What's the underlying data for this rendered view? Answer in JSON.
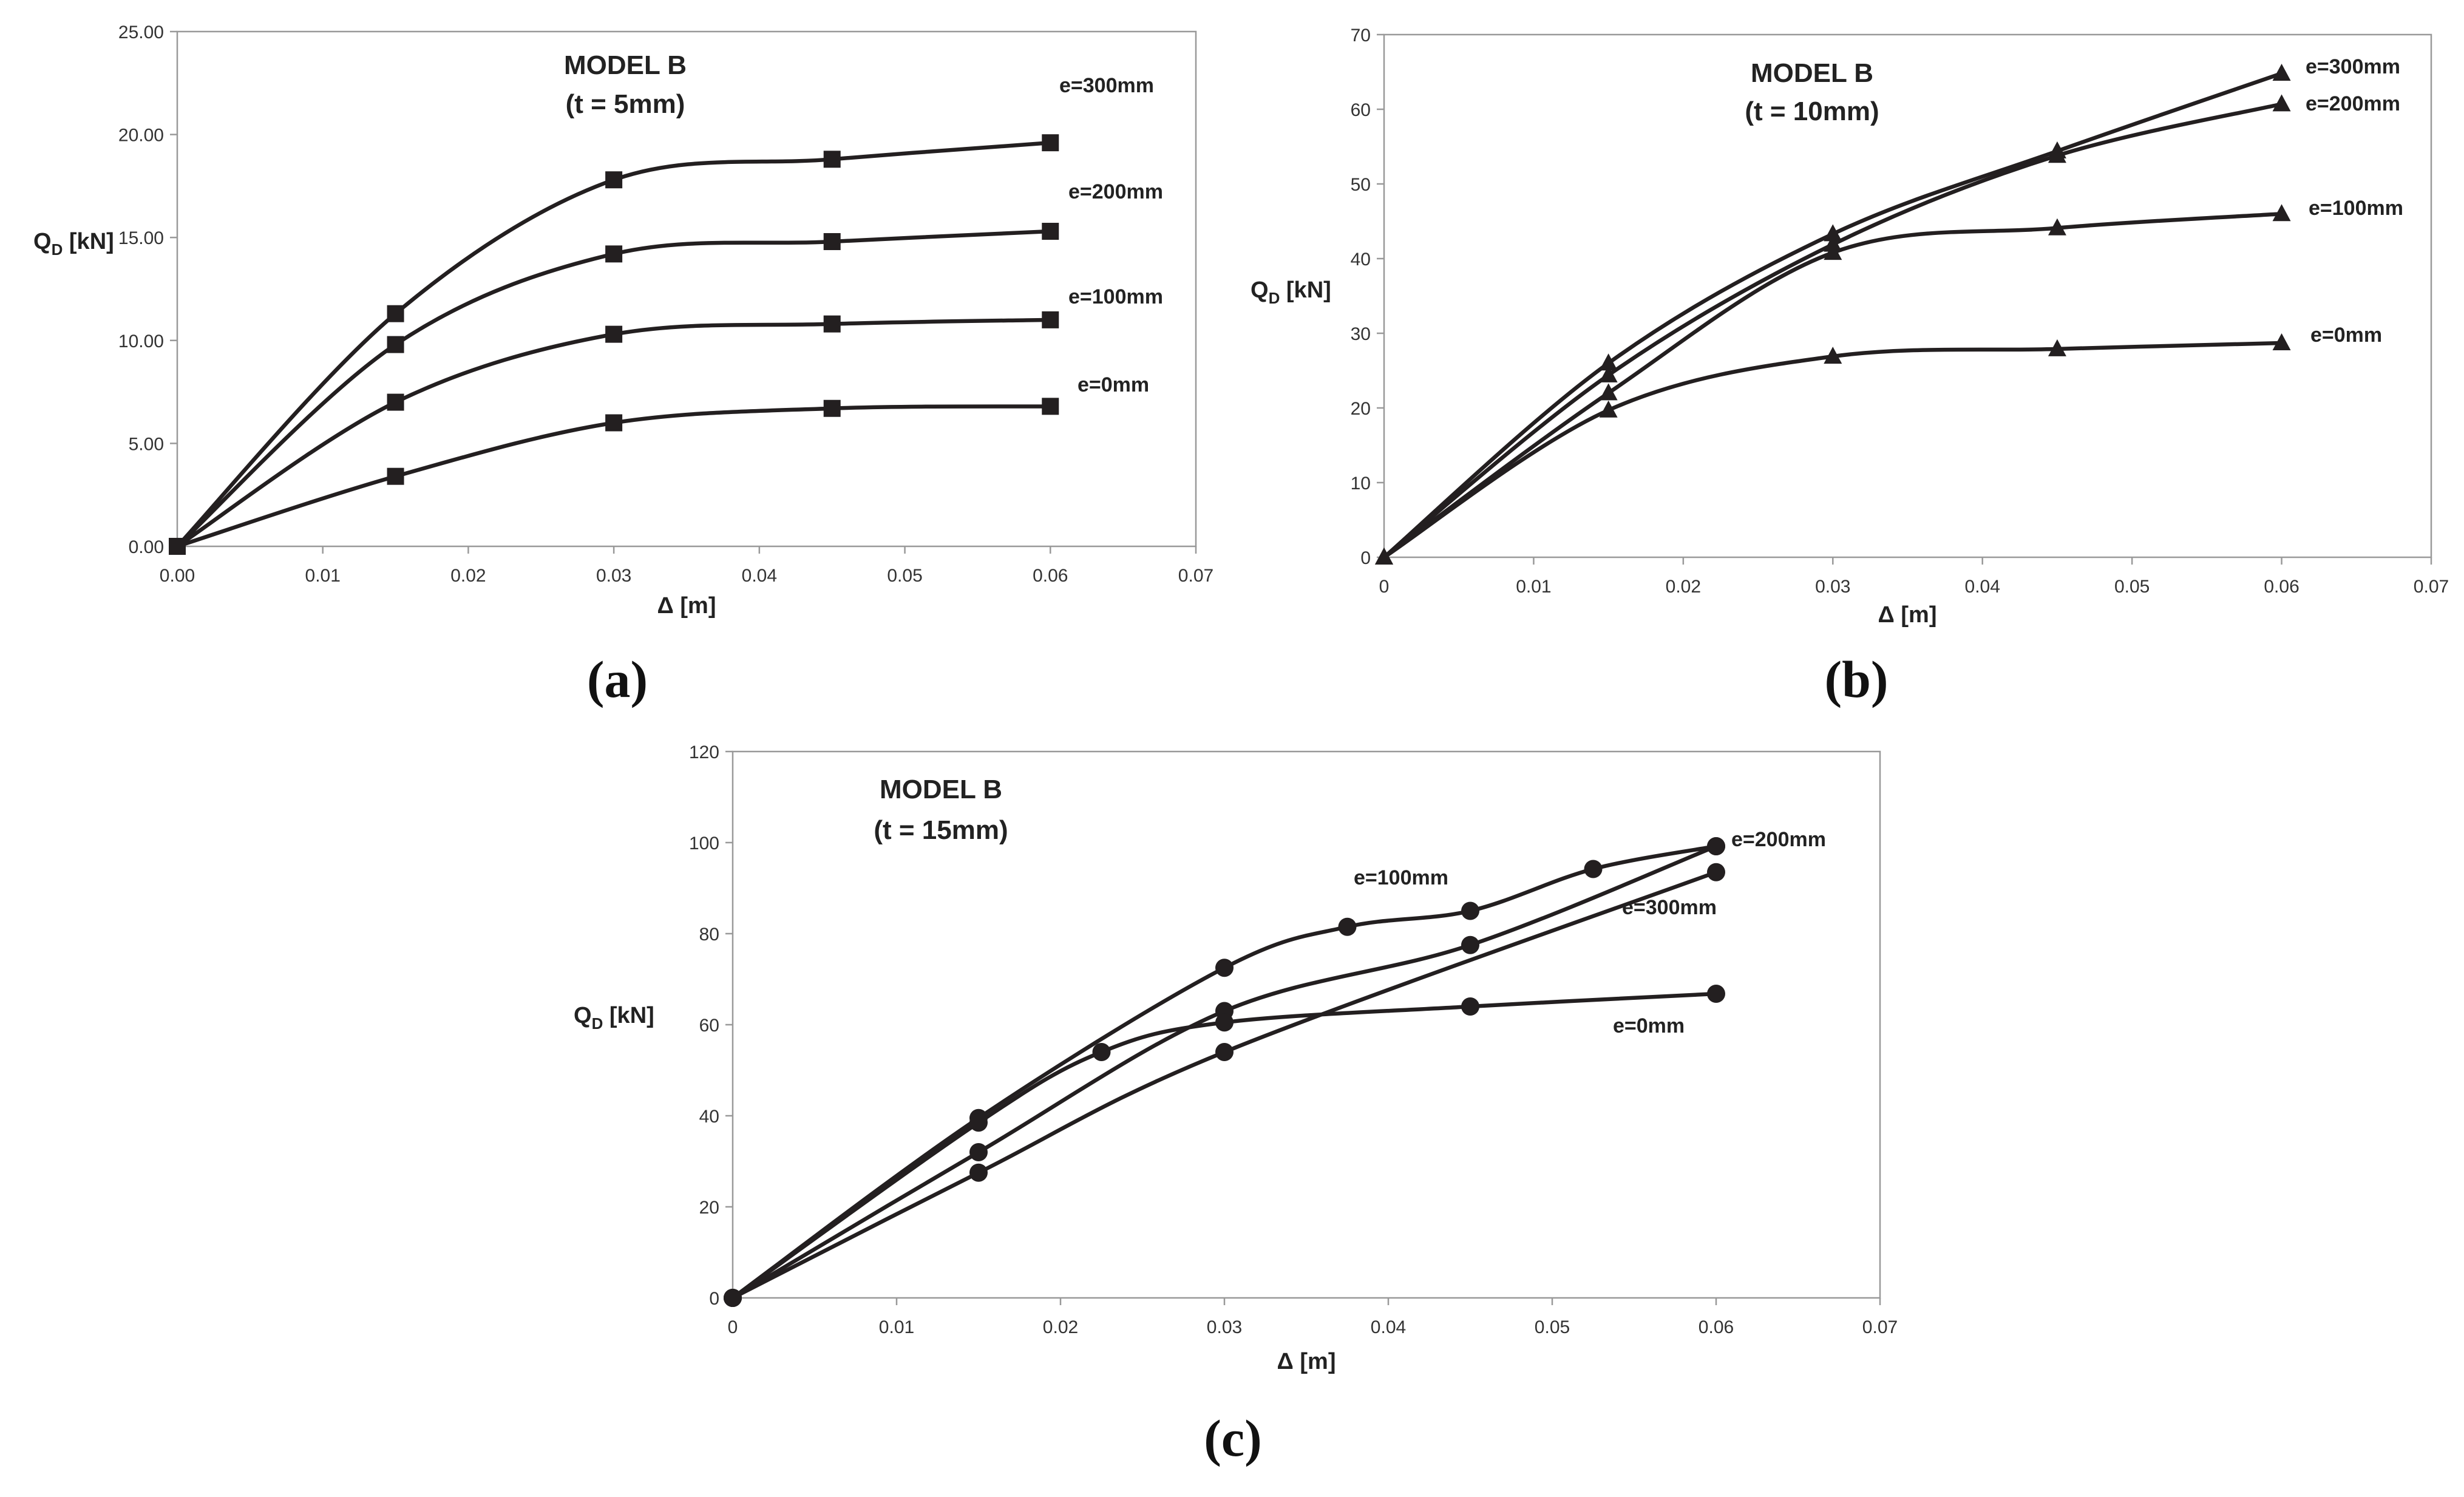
{
  "chart_data": [
    {
      "type": "line",
      "panel_label": "(a)",
      "title": "MODEL B",
      "subtitle": "(t = 5mm)",
      "xlabel": "Δ [m]",
      "ylabel": "Q",
      "ylabel_sub": "D",
      "ylabel_unit": " [kN]",
      "xlim": [
        0,
        0.07
      ],
      "ylim": [
        0,
        25
      ],
      "xticks": [
        0,
        0.01,
        0.02,
        0.03,
        0.04,
        0.05,
        0.06,
        0.07
      ],
      "xtick_labels": [
        "0.00",
        "0.01",
        "0.02",
        "0.03",
        "0.04",
        "0.05",
        "0.06",
        "0.07"
      ],
      "yticks": [
        0,
        5,
        10,
        15,
        20,
        25
      ],
      "ytick_labels": [
        "0.00",
        "5.00",
        "10.00",
        "15.00",
        "20.00",
        "25.00"
      ],
      "marker": "square",
      "grid": false,
      "series": [
        {
          "name": "e=300mm",
          "x": [
            0,
            0.015,
            0.03,
            0.045,
            0.06
          ],
          "y": [
            0,
            11.3,
            17.8,
            18.8,
            19.6
          ]
        },
        {
          "name": "e=200mm",
          "x": [
            0,
            0.015,
            0.03,
            0.045,
            0.06
          ],
          "y": [
            0,
            9.8,
            14.2,
            14.8,
            15.3
          ]
        },
        {
          "name": "e=100mm",
          "x": [
            0,
            0.015,
            0.03,
            0.045,
            0.06
          ],
          "y": [
            0,
            7.0,
            10.3,
            10.8,
            11.0
          ]
        },
        {
          "name": "e=0mm",
          "x": [
            0,
            0.015,
            0.03,
            0.045,
            0.06
          ],
          "y": [
            0,
            3.4,
            6.0,
            6.7,
            6.8
          ]
        }
      ]
    },
    {
      "type": "line",
      "panel_label": "(b)",
      "title": "MODEL B",
      "subtitle": "(t = 10mm)",
      "xlabel": "Δ [m]",
      "ylabel": "Q",
      "ylabel_sub": "D",
      "ylabel_unit": " [kN]",
      "xlim": [
        0,
        0.07
      ],
      "ylim": [
        0,
        70
      ],
      "xticks": [
        0,
        0.01,
        0.02,
        0.03,
        0.04,
        0.05,
        0.06,
        0.07
      ],
      "xtick_labels": [
        "0",
        "0.01",
        "0.02",
        "0.03",
        "0.04",
        "0.05",
        "0.06",
        "0.07"
      ],
      "yticks": [
        0,
        10,
        20,
        30,
        40,
        50,
        60,
        70
      ],
      "ytick_labels": [
        "0",
        "10",
        "20",
        "30",
        "40",
        "50",
        "60",
        "70"
      ],
      "marker": "triangle",
      "grid": false,
      "series": [
        {
          "name": "e=300mm",
          "x": [
            0,
            0.015,
            0.03,
            0.045,
            0.06
          ],
          "y": [
            0,
            26.0,
            43.3,
            54.4,
            64.8
          ]
        },
        {
          "name": "e=200mm",
          "x": [
            0,
            0.015,
            0.03,
            0.045,
            0.06
          ],
          "y": [
            0,
            24.4,
            41.9,
            53.8,
            60.7
          ]
        },
        {
          "name": "e=100mm",
          "x": [
            0,
            0.015,
            0.03,
            0.045,
            0.06
          ],
          "y": [
            0,
            22.0,
            40.8,
            44.1,
            46.0
          ]
        },
        {
          "name": "e=0mm",
          "x": [
            0,
            0.015,
            0.03,
            0.045,
            0.06
          ],
          "y": [
            0,
            19.7,
            26.9,
            27.9,
            28.7
          ]
        }
      ]
    },
    {
      "type": "line",
      "panel_label": "(c)",
      "title": "MODEL B",
      "subtitle": "(t = 15mm)",
      "xlabel": "Δ [m]",
      "ylabel": "Q",
      "ylabel_sub": "D",
      "ylabel_unit": " [kN]",
      "xlim": [
        0,
        0.07
      ],
      "ylim": [
        0,
        120
      ],
      "xticks": [
        0,
        0.01,
        0.02,
        0.03,
        0.04,
        0.05,
        0.06,
        0.07
      ],
      "xtick_labels": [
        "0",
        "0.01",
        "0.02",
        "0.03",
        "0.04",
        "0.05",
        "0.06",
        "0.07"
      ],
      "yticks": [
        0,
        20,
        40,
        60,
        80,
        100,
        120
      ],
      "ytick_labels": [
        "0",
        "20",
        "40",
        "60",
        "80",
        "100",
        "120"
      ],
      "marker": "circle",
      "grid": false,
      "series": [
        {
          "name": "e=100mm",
          "x": [
            0,
            0.015,
            0.03,
            0.0375,
            0.045,
            0.0525,
            0.06
          ],
          "y": [
            0,
            39.5,
            72.5,
            81.5,
            85.0,
            94.2,
            99.2
          ]
        },
        {
          "name": "e=200mm",
          "x": [
            0,
            0.015,
            0.03,
            0.045,
            0.06
          ],
          "y": [
            0,
            32.0,
            63.0,
            77.5,
            99.2
          ]
        },
        {
          "name": "e=300mm",
          "x": [
            0,
            0.015,
            0.03,
            0.06
          ],
          "y": [
            0,
            27.5,
            54.0,
            93.5
          ]
        },
        {
          "name": "e=0mm",
          "x": [
            0,
            0.015,
            0.0225,
            0.03,
            0.045,
            0.06
          ],
          "y": [
            0,
            38.5,
            54.0,
            60.5,
            64.0,
            66.8
          ]
        }
      ]
    }
  ]
}
